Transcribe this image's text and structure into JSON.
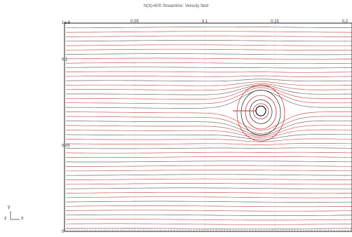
{
  "title": "N(3)=800  Streamline: Velocity field",
  "axes": {
    "x_ticks": [
      {
        "value": 0,
        "label": "0"
      },
      {
        "value": 0.05,
        "label": "0.05"
      },
      {
        "value": 0.1,
        "label": "0.1"
      },
      {
        "value": 0.15,
        "label": "0.15"
      },
      {
        "value": 0.2,
        "label": "0.2"
      }
    ],
    "y_ticks": [
      {
        "value": 0,
        "label": "0"
      },
      {
        "value": 0.05,
        "label": "0.05"
      },
      {
        "value": 0.1,
        "label": "0.1"
      }
    ],
    "corner_label": "1e-9",
    "xlim": [
      0,
      0.205
    ],
    "ylim": [
      0,
      0.121
    ]
  },
  "triad": {
    "y_label": "y",
    "z_label": "z",
    "x_label": "x"
  },
  "obstacle": {
    "center": [
      0.14,
      0.07
    ],
    "radius": 0.004
  },
  "colors": {
    "streamline": "#c04040",
    "accent": "#c03030",
    "frame": "#222222",
    "grid": "#bbbbbb"
  }
}
